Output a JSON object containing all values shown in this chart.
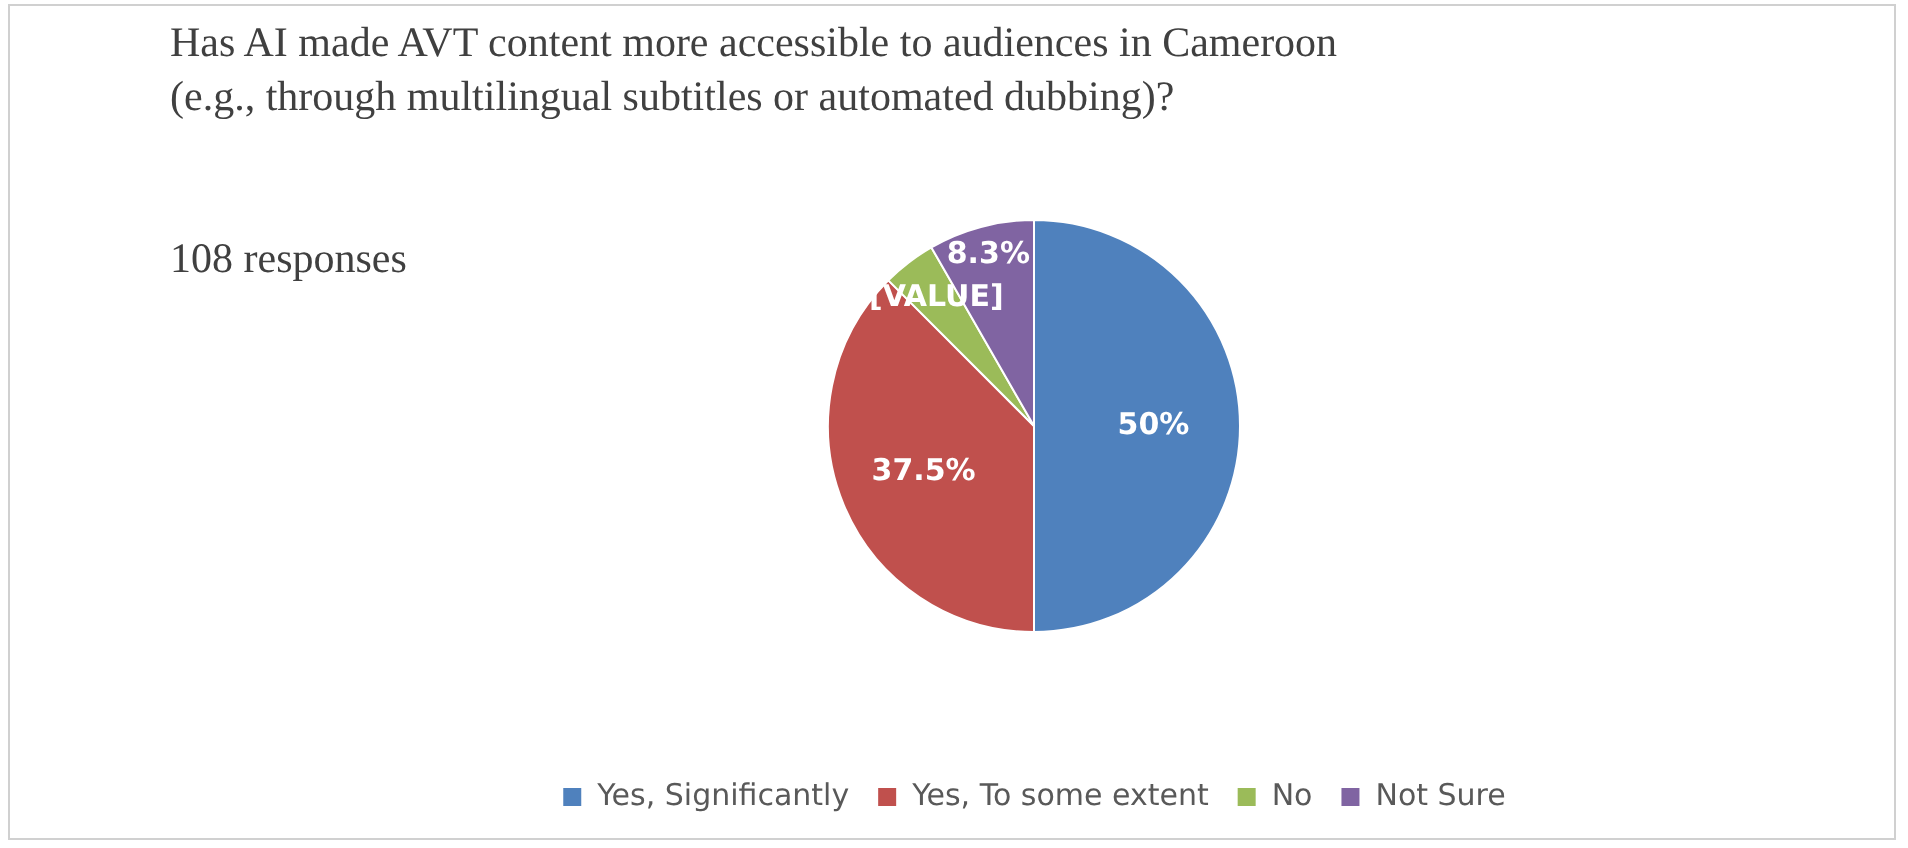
{
  "chart_data": {
    "type": "pie",
    "title": "Has AI made AVT content more accessible to audiences in Cameroon (e.g., through multilingual subtitles or automated dubbing)?",
    "subtitle": "108 responses",
    "categories": [
      "Yes, Significantly",
      "Yes, To some extent",
      "No",
      "Not Sure"
    ],
    "values": [
      50,
      37.5,
      4.2,
      8.3
    ],
    "colors": [
      "#4f81bd",
      "#c0504d",
      "#9bbb59",
      "#8064a2"
    ],
    "value_labels": [
      "50%",
      "37.5%",
      "[VALUE]",
      "8.3%"
    ],
    "legend": "bottom"
  }
}
